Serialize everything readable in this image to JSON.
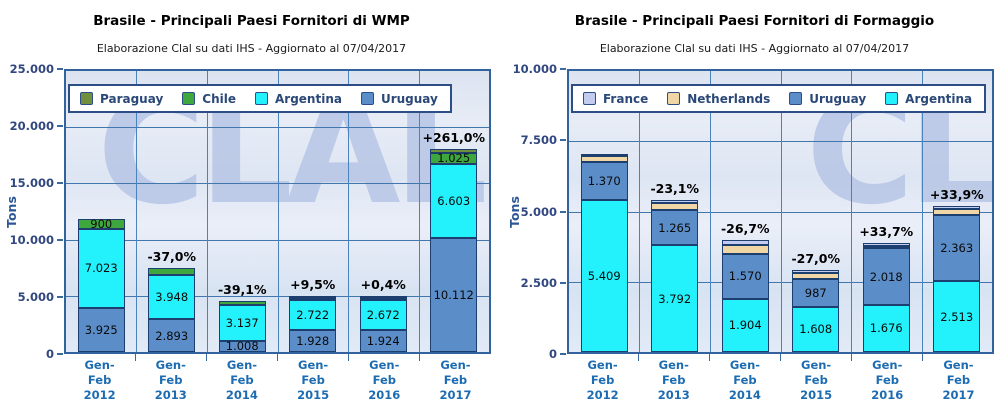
{
  "charts": [
    {
      "title": "Brasile - Principali Paesi Fornitori di WMP",
      "subtitle": "Elaborazione Clal su dati IHS - Aggiornato al 07/04/2017",
      "ylabel": "Tons",
      "watermark": "CLAL",
      "legend": [
        {
          "label": "Paraguay",
          "color": "#70903e"
        },
        {
          "label": "Chile",
          "color": "#3ea83e"
        },
        {
          "label": "Argentina",
          "color": "#23f1fb"
        },
        {
          "label": "Uruguay",
          "color": "#5b8dc8"
        }
      ],
      "chart_data": {
        "type": "bar",
        "stacked": true,
        "grid": true,
        "legend_position": "top-left",
        "categories": [
          "Gen-Feb 2012",
          "Gen-Feb 2013",
          "Gen-Feb 2014",
          "Gen-Feb 2015",
          "Gen-Feb 2016",
          "Gen-Feb 2017"
        ],
        "category_lines": [
          [
            "Gen-",
            "Feb",
            "2012"
          ],
          [
            "Gen-",
            "Feb",
            "2013"
          ],
          [
            "Gen-",
            "Feb",
            "2014"
          ],
          [
            "Gen-",
            "Feb",
            "2015"
          ],
          [
            "Gen-",
            "Feb",
            "2016"
          ],
          [
            "Gen-",
            "Feb",
            "2017"
          ]
        ],
        "xlabel": "",
        "ylabel": "Tons",
        "ylim": [
          0,
          25000
        ],
        "ymax": 25000,
        "yticks": [
          {
            "value": 0,
            "label": "0"
          },
          {
            "value": 5000,
            "label": "5.000"
          },
          {
            "value": 10000,
            "label": "10.000"
          },
          {
            "value": 15000,
            "label": "15.000"
          },
          {
            "value": 20000,
            "label": "20.000"
          },
          {
            "value": 25000,
            "label": "25.000"
          }
        ],
        "series": [
          {
            "name": "Uruguay",
            "color": "#5b8dc8",
            "values": [
              3925,
              2893,
              1008,
              1928,
              1924,
              10112
            ],
            "labels": [
              "3.925",
              "2.893",
              "1.008",
              "1.928",
              "1.924",
              "10.112"
            ]
          },
          {
            "name": "Argentina",
            "color": "#23f1fb",
            "values": [
              7023,
              3948,
              3137,
              2722,
              2672,
              6603
            ],
            "labels": [
              "7.023",
              "3.948",
              "3.137",
              "2.722",
              "2.672",
              "6.603"
            ]
          },
          {
            "name": "Chile",
            "color": "#3ea83e",
            "values": [
              900,
              620,
              400,
              200,
              250,
              1025
            ],
            "labels": [
              "900",
              null,
              null,
              null,
              null,
              "1.025"
            ]
          },
          {
            "name": "Paraguay",
            "color": "#70903e",
            "values": [
              0,
              0,
              0,
              130,
              150,
              300
            ],
            "labels": [
              null,
              null,
              null,
              null,
              null,
              null
            ]
          }
        ],
        "pct_labels": [
          null,
          "-37,0%",
          "-39,1%",
          "+9,5%",
          "+0,4%",
          "+261,0%"
        ]
      }
    },
    {
      "title": "Brasile - Principali Paesi Fornitori di Formaggio",
      "subtitle": "Elaborazione Clal su dati IHS - Aggiornato al 07/04/2017",
      "ylabel": "Tons",
      "watermark": "CLAL",
      "legend": [
        {
          "label": "France",
          "color": "#c3ccf0"
        },
        {
          "label": "Netherlands",
          "color": "#f0d6a4"
        },
        {
          "label": "Uruguay",
          "color": "#5b8dc8"
        },
        {
          "label": "Argentina",
          "color": "#23f1fb"
        }
      ],
      "chart_data": {
        "type": "bar",
        "stacked": true,
        "grid": true,
        "legend_position": "top-left",
        "categories": [
          "Gen-Feb 2012",
          "Gen-Feb 2013",
          "Gen-Feb 2014",
          "Gen-Feb 2015",
          "Gen-Feb 2016",
          "Gen-Feb 2017"
        ],
        "category_lines": [
          [
            "Gen-",
            "Feb",
            "2012"
          ],
          [
            "Gen-",
            "Feb",
            "2013"
          ],
          [
            "Gen-",
            "Feb",
            "2014"
          ],
          [
            "Gen-",
            "Feb",
            "2015"
          ],
          [
            "Gen-",
            "Feb",
            "2016"
          ],
          [
            "Gen-",
            "Feb",
            "2017"
          ]
        ],
        "xlabel": "",
        "ylabel": "Tons",
        "ylim": [
          0,
          10000
        ],
        "ymax": 10000,
        "yticks": [
          {
            "value": 0,
            "label": "0"
          },
          {
            "value": 2500,
            "label": "2.500"
          },
          {
            "value": 5000,
            "label": "5.000"
          },
          {
            "value": 7500,
            "label": "7.500"
          },
          {
            "value": 10000,
            "label": "10.000"
          }
        ],
        "series": [
          {
            "name": "Argentina",
            "color": "#23f1fb",
            "values": [
              5409,
              3792,
              1904,
              1608,
              1676,
              2513
            ],
            "labels": [
              "5.409",
              "3.792",
              "1.904",
              "1.608",
              "1.676",
              "2.513"
            ]
          },
          {
            "name": "Uruguay",
            "color": "#5b8dc8",
            "values": [
              1370,
              1265,
              1570,
              987,
              2018,
              2363
            ],
            "labels": [
              "1.370",
              "1.265",
              "1.570",
              "987",
              "2.018",
              "2.363"
            ]
          },
          {
            "name": "Netherlands",
            "color": "#f0d6a4",
            "values": [
              180,
              230,
              330,
              220,
              90,
              200
            ],
            "labels": [
              null,
              null,
              null,
              null,
              null,
              null
            ]
          },
          {
            "name": "France",
            "color": "#c3ccf0",
            "values": [
              100,
              140,
              170,
              90,
              100,
              120
            ],
            "labels": [
              null,
              null,
              null,
              null,
              null,
              null
            ]
          }
        ],
        "pct_labels": [
          null,
          "-23,1%",
          "-26,7%",
          "-27,0%",
          "+33,7%",
          "+33,9%"
        ]
      }
    }
  ]
}
